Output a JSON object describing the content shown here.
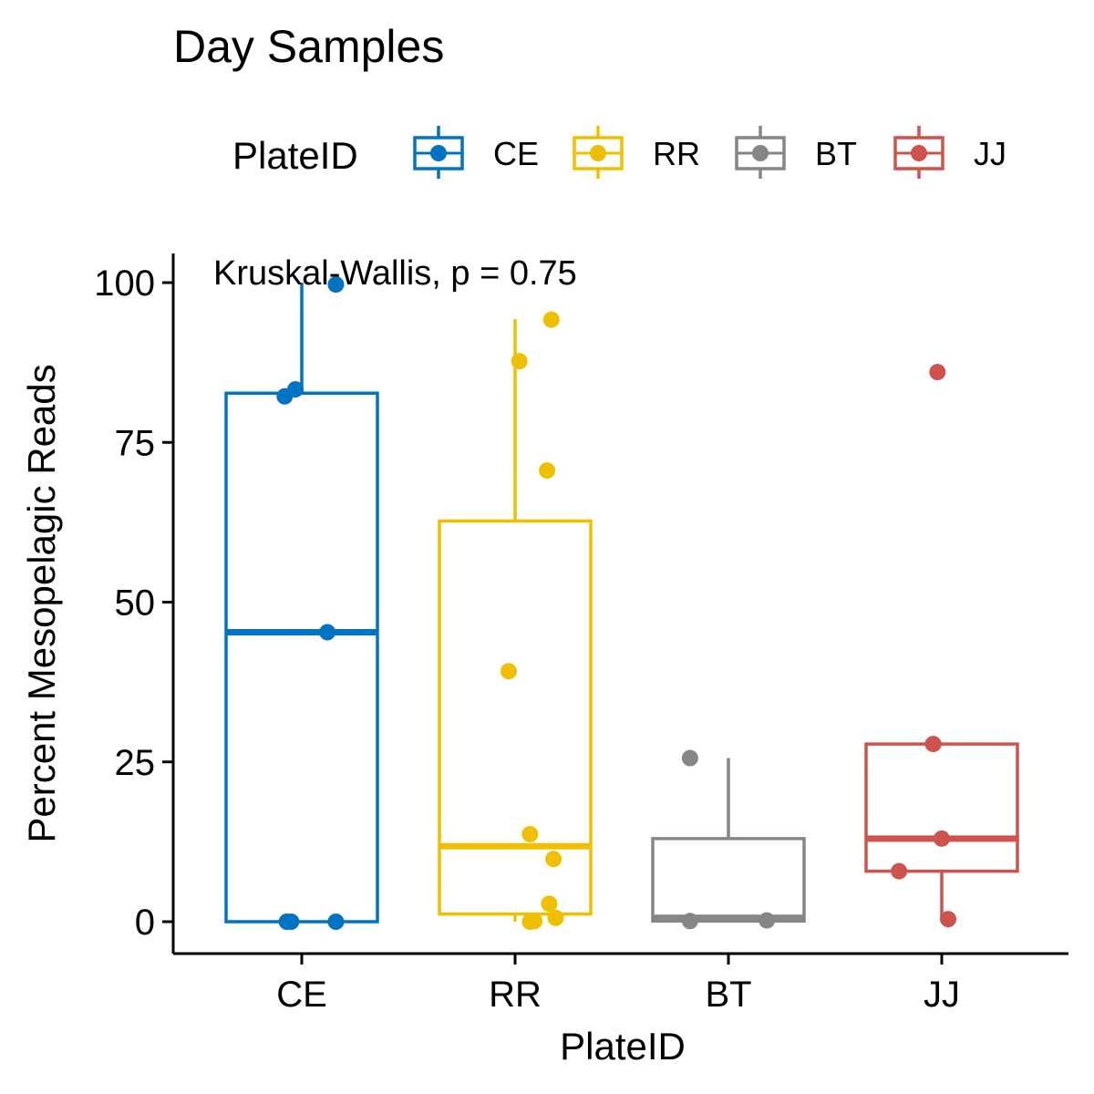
{
  "chart_data": {
    "type": "boxplot",
    "title": "Day Samples",
    "xlabel": "PlateID",
    "ylabel": "Percent Mesopelagic Reads",
    "ylim": [
      -5,
      105
    ],
    "yticks": [
      0,
      25,
      50,
      75,
      100
    ],
    "grid": false,
    "legend": {
      "title": "PlateID",
      "position": "top"
    },
    "annotation": "Kruskal-Wallis, p = 0.75",
    "categories": [
      "CE",
      "RR",
      "BT",
      "JJ"
    ],
    "series": [
      {
        "name": "CE",
        "color": "#0073C2",
        "box": {
          "min": 0,
          "q1": 0,
          "median": 45.3,
          "q3": 82.7,
          "max": 100
        },
        "points": [
          {
            "x": 0.93,
            "y": 0
          },
          {
            "x": 0.95,
            "y": 0
          },
          {
            "x": 1.16,
            "y": 0
          },
          {
            "x": 1.12,
            "y": 45.3
          },
          {
            "x": 0.92,
            "y": 82.2
          },
          {
            "x": 0.97,
            "y": 83.3
          },
          {
            "x": 1.16,
            "y": 99.7
          }
        ]
      },
      {
        "name": "RR",
        "color": "#EFC000",
        "box": {
          "min": 0,
          "q1": 1.2,
          "median": 11.8,
          "q3": 62.7,
          "max": 94.3
        },
        "points": [
          {
            "x": 2.07,
            "y": 0
          },
          {
            "x": 2.09,
            "y": 0.1
          },
          {
            "x": 2.19,
            "y": 0.6
          },
          {
            "x": 2.16,
            "y": 2.8
          },
          {
            "x": 2.18,
            "y": 9.8
          },
          {
            "x": 2.07,
            "y": 13.7
          },
          {
            "x": 1.97,
            "y": 39.2
          },
          {
            "x": 2.15,
            "y": 70.6
          },
          {
            "x": 2.02,
            "y": 87.7
          },
          {
            "x": 2.17,
            "y": 94.2
          }
        ]
      },
      {
        "name": "BT",
        "color": "#868686",
        "box": {
          "min": 0,
          "q1": 0.1,
          "median": 0.6,
          "q3": 13,
          "max": 25.6
        },
        "points": [
          {
            "x": 2.82,
            "y": 0.1
          },
          {
            "x": 3.18,
            "y": 0.2
          },
          {
            "x": 2.82,
            "y": 25.6
          }
        ]
      },
      {
        "name": "JJ",
        "color": "#CD534C",
        "box": {
          "min": 0.4,
          "q1": 7.9,
          "median": 13,
          "q3": 27.8,
          "max": 27.8
        },
        "points": [
          {
            "x": 4.03,
            "y": 0.4
          },
          {
            "x": 3.8,
            "y": 7.9
          },
          {
            "x": 4.0,
            "y": 13
          },
          {
            "x": 3.96,
            "y": 27.8
          },
          {
            "x": 3.98,
            "y": 86
          }
        ]
      }
    ]
  }
}
